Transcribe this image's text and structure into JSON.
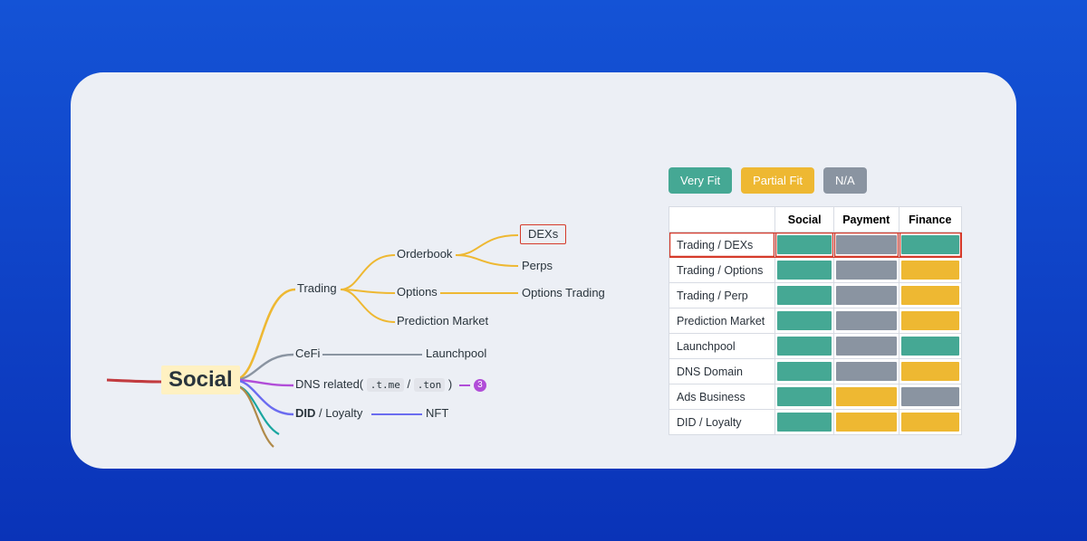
{
  "colors": {
    "very_fit": "#45a894",
    "partial_fit": "#eeb832",
    "na": "#8a94a1",
    "highlight": "#d53a2a",
    "root_bg": "#fff1c2",
    "branch_yellow": "#eeb832",
    "branch_gray": "#8a94a1",
    "branch_purple": "#b14dd8",
    "branch_indigo": "#6b6cf0",
    "branch_red": "#c23b3f",
    "branch_teal": "#1aa6a0",
    "branch_brown": "#b08a4a"
  },
  "mindmap": {
    "root": "Social",
    "nodes": {
      "trading": "Trading",
      "orderbook": "Orderbook",
      "dexs": "DEXs",
      "perps": "Perps",
      "options": "Options",
      "options_trading": "Options Trading",
      "prediction": "Prediction Market",
      "cefi": "CeFi",
      "launchpool": "Launchpool",
      "dns_prefix": "DNS related(",
      "dns_code1": ".t.me",
      "dns_sep": "/",
      "dns_code2": ".ton",
      "dns_suffix": ")",
      "dns_badge": "3",
      "did_bold": "DID",
      "did_rest": " / Loyalty",
      "nft": "NFT"
    }
  },
  "legend": {
    "very_fit": "Very Fit",
    "partial_fit": "Partial Fit",
    "na": "N/A"
  },
  "fit_table": {
    "columns": [
      "",
      "Social",
      "Payment",
      "Finance"
    ],
    "col_widths": [
      "132px",
      "64px",
      "64px",
      "64px"
    ],
    "rows": [
      {
        "label": "Trading / DEXs",
        "cells": [
          "very_fit",
          "na",
          "very_fit"
        ],
        "highlight": true
      },
      {
        "label": "Trading / Options",
        "cells": [
          "very_fit",
          "na",
          "partial_fit"
        ]
      },
      {
        "label": "Trading / Perp",
        "cells": [
          "very_fit",
          "na",
          "partial_fit"
        ]
      },
      {
        "label": "Prediction Market",
        "cells": [
          "very_fit",
          "na",
          "partial_fit"
        ]
      },
      {
        "label": "Launchpool",
        "cells": [
          "very_fit",
          "na",
          "very_fit"
        ]
      },
      {
        "label": "DNS Domain",
        "cells": [
          "very_fit",
          "na",
          "partial_fit"
        ]
      },
      {
        "label": "Ads Business",
        "cells": [
          "very_fit",
          "partial_fit",
          "na"
        ]
      },
      {
        "label": "DID / Loyalty",
        "cells": [
          "very_fit",
          "partial_fit",
          "partial_fit"
        ]
      }
    ]
  }
}
